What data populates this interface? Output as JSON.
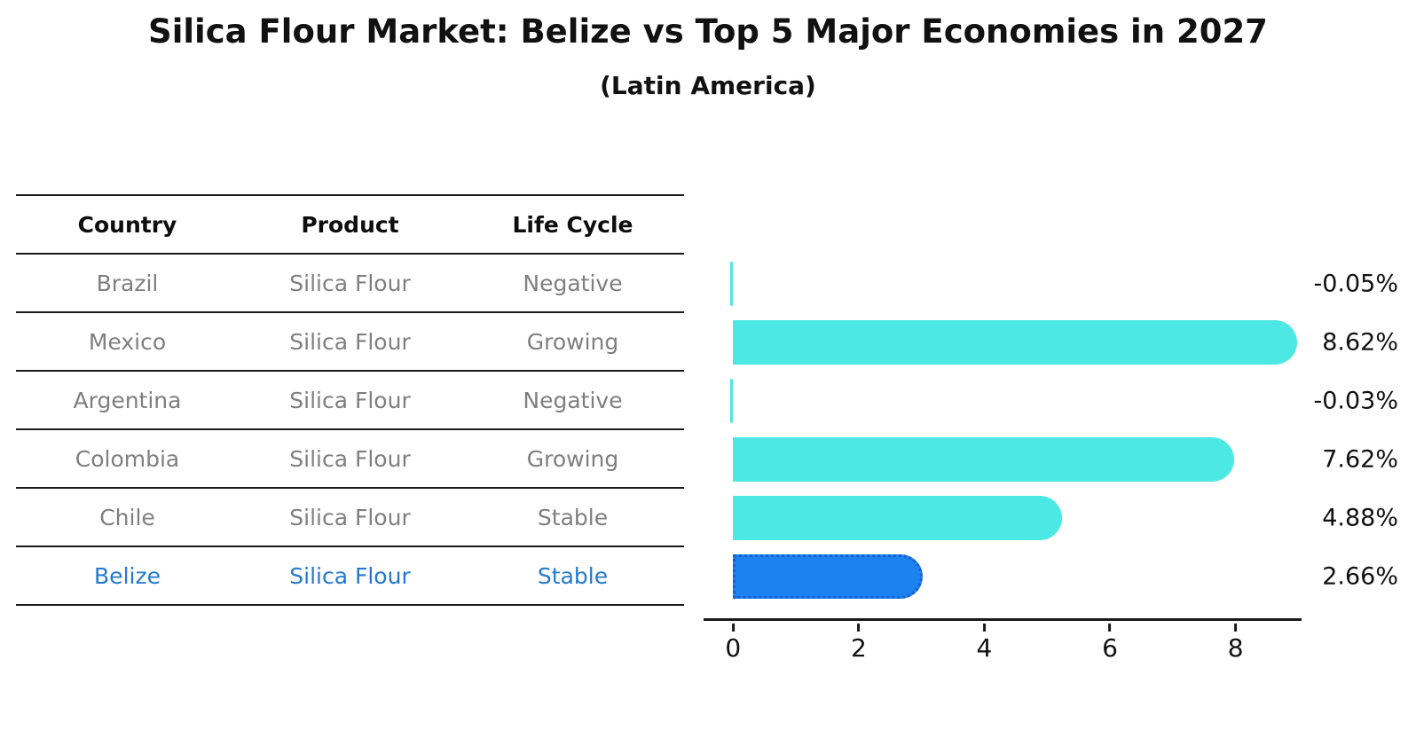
{
  "chart_data": {
    "type": "bar",
    "orientation": "horizontal",
    "title": "Silica Flour Market: Belize vs Top 5 Major Economies in 2027",
    "subtitle": "(Latin America)",
    "categories": [
      "Brazil",
      "Mexico",
      "Argentina",
      "Colombia",
      "Chile",
      "Belize"
    ],
    "values": [
      -0.05,
      8.62,
      -0.03,
      7.62,
      4.88,
      2.66
    ],
    "value_labels": [
      "-0.05%",
      "8.62%",
      "-0.03%",
      "7.62%",
      "4.88%",
      "2.66%"
    ],
    "x_ticks": [
      "0",
      "2",
      "4",
      "6",
      "8"
    ],
    "x_tick_values": [
      0,
      2,
      4,
      6,
      8
    ],
    "xlim": [
      -0.47,
      9.05
    ],
    "grid": false,
    "legend": "none",
    "bar_color": "#4BE8E4",
    "highlight_index": 5,
    "highlight_color": "#1C82F0",
    "highlight_border_color": "#1660CF"
  },
  "table": {
    "headers": [
      "Country",
      "Product",
      "Life Cycle"
    ],
    "rows": [
      {
        "country": "Brazil",
        "product": "Silica Flour",
        "life_cycle": "Negative",
        "highlight": false
      },
      {
        "country": "Mexico",
        "product": "Silica Flour",
        "life_cycle": "Growing",
        "highlight": false
      },
      {
        "country": "Argentina",
        "product": "Silica Flour",
        "life_cycle": "Negative",
        "highlight": false
      },
      {
        "country": "Colombia",
        "product": "Silica Flour",
        "life_cycle": "Growing",
        "highlight": false
      },
      {
        "country": "Chile",
        "product": "Silica Flour",
        "life_cycle": "Stable",
        "highlight": false
      },
      {
        "country": "Belize",
        "product": "Silica Flour",
        "life_cycle": "Stable",
        "highlight": true
      }
    ]
  },
  "colors": {
    "background": "#ffffff",
    "title_text": "#111111",
    "table_text": "#7f7f7f",
    "table_header_text": "#0d0d0d",
    "highlight_text": "#2478CE",
    "axis": "#1a1a1a"
  }
}
